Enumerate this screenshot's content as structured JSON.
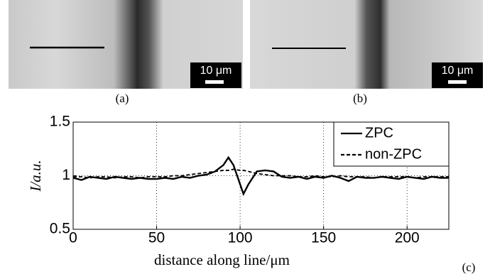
{
  "panels": [
    {
      "label": "(a)",
      "scale_bar": "10 μm"
    },
    {
      "label": "(b)",
      "scale_bar": "10 μm"
    }
  ],
  "chart_data": {
    "type": "line",
    "panel_label": "(c)",
    "x_label": "distance along line/μm",
    "y_label": "I/a.u.",
    "x": [
      0,
      5,
      10,
      15,
      20,
      25,
      30,
      35,
      40,
      45,
      50,
      55,
      60,
      65,
      70,
      75,
      80,
      85,
      90,
      93,
      96,
      100,
      102,
      105,
      110,
      115,
      120,
      125,
      130,
      135,
      140,
      145,
      150,
      155,
      160,
      165,
      170,
      175,
      180,
      185,
      190,
      195,
      200,
      205,
      210,
      215,
      220,
      225
    ],
    "series": [
      {
        "name": "ZPC",
        "color": "#000000",
        "line_style": "solid",
        "values": [
          0.98,
          0.96,
          0.99,
          0.98,
          0.97,
          0.99,
          0.98,
          0.97,
          0.98,
          0.97,
          0.97,
          0.98,
          0.97,
          0.99,
          0.98,
          1.0,
          1.01,
          1.04,
          1.1,
          1.17,
          1.1,
          0.92,
          0.83,
          0.92,
          1.04,
          1.05,
          1.04,
          0.99,
          0.98,
          0.99,
          0.97,
          0.99,
          0.98,
          1.0,
          0.98,
          0.95,
          0.99,
          0.98,
          0.98,
          0.99,
          0.98,
          0.97,
          0.99,
          0.98,
          0.97,
          0.99,
          0.98,
          0.98
        ]
      },
      {
        "name": "non-ZPC",
        "color": "#000000",
        "line_style": "dashed",
        "values": [
          0.99,
          0.99,
          0.98,
          0.99,
          0.99,
          0.98,
          0.99,
          0.99,
          0.98,
          0.99,
          0.99,
          0.99,
          1.0,
          1.0,
          1.01,
          1.02,
          1.03,
          1.04,
          1.05,
          1.05,
          1.06,
          1.05,
          1.05,
          1.04,
          1.02,
          1.01,
          1.0,
          1.0,
          1.0,
          0.99,
          0.99,
          1.0,
          0.99,
          0.99,
          1.0,
          0.99,
          0.99,
          0.99,
          0.98,
          0.99,
          0.99,
          0.99,
          0.99,
          0.98,
          0.99,
          0.99,
          0.99,
          0.99
        ]
      }
    ],
    "xlim": [
      0,
      225
    ],
    "ylim": [
      0.5,
      1.5
    ],
    "xticks": [
      0,
      50,
      100,
      150,
      200
    ],
    "yticks": [
      0.5,
      1,
      1.5
    ],
    "grid": true,
    "legend": "upper right"
  }
}
